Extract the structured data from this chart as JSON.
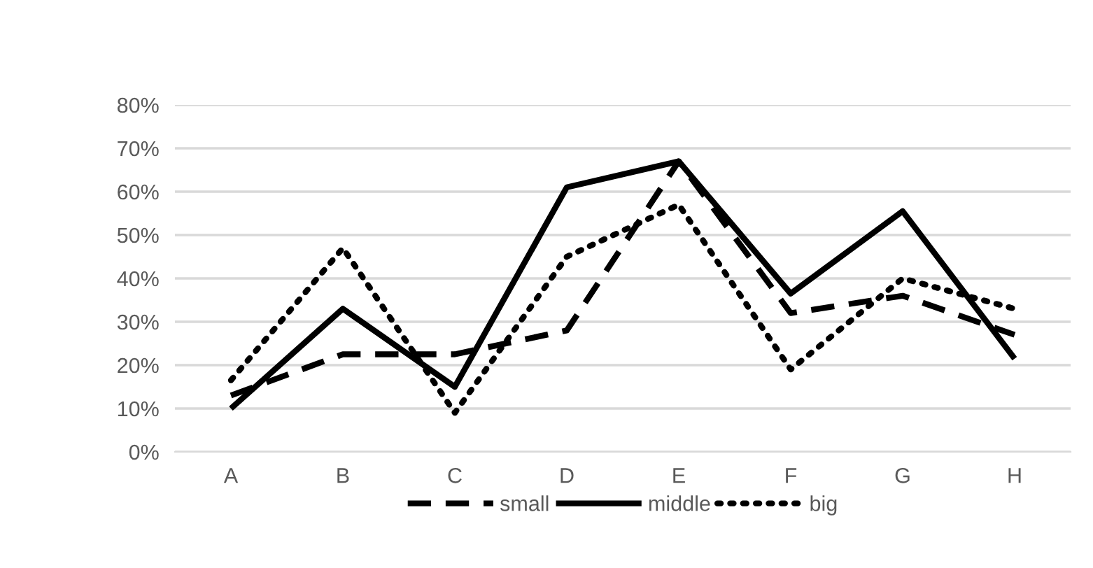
{
  "chart_data": {
    "type": "line",
    "categories": [
      "A",
      "B",
      "C",
      "D",
      "E",
      "F",
      "G",
      "H"
    ],
    "series": [
      {
        "name": "small",
        "color": "#000000",
        "line_style": "dashed",
        "values": [
          13,
          22.5,
          22.5,
          28,
          67,
          32,
          36,
          27
        ]
      },
      {
        "name": "middle",
        "color": "#000000",
        "line_style": "solid",
        "values": [
          10,
          33,
          15,
          61,
          67,
          36.5,
          55.5,
          21.5
        ]
      },
      {
        "name": "big",
        "color": "#000000",
        "line_style": "dotted",
        "values": [
          16.5,
          47,
          9,
          45,
          57,
          19,
          40,
          33
        ]
      }
    ],
    "ylim": [
      0,
      80
    ],
    "yticks": [
      {
        "value": 0,
        "label": "0%"
      },
      {
        "value": 10,
        "label": "10%"
      },
      {
        "value": 20,
        "label": "20%"
      },
      {
        "value": 30,
        "label": "30%"
      },
      {
        "value": 40,
        "label": "40%"
      },
      {
        "value": 50,
        "label": "50%"
      },
      {
        "value": 60,
        "label": "60%"
      },
      {
        "value": 70,
        "label": "70%"
      },
      {
        "value": 80,
        "label": "80%"
      }
    ],
    "grid": "y",
    "legend": "bottom",
    "marker": "none"
  }
}
